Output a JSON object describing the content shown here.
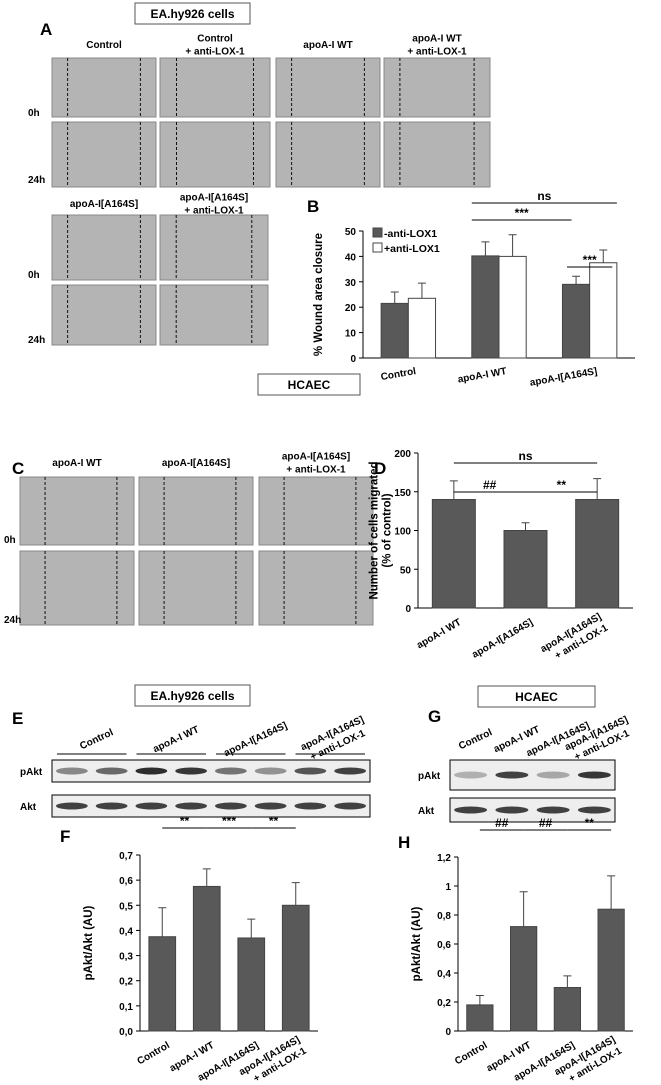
{
  "figure": {
    "panels": [
      "A",
      "B",
      "C",
      "D",
      "E",
      "F",
      "G",
      "H"
    ],
    "headers": [
      "EA.hy926 cells",
      "HCAEC",
      "EA.hy926 cells",
      "HCAEC"
    ]
  },
  "panel_a": {
    "top_labels": [
      "Control",
      "Control\n+ anti-LOX-1",
      "apoA-I WT",
      "apoA-I WT\n+ anti-LOX-1"
    ],
    "bottom_labels": [
      "apoA-I[A164S]",
      "apoA-I[A164S]\n+ anti-LOX-1"
    ],
    "times": [
      "0h",
      "24h"
    ]
  },
  "panel_c": {
    "labels": [
      "apoA-I WT",
      "apoA-I[A164S]",
      "apoA-I[A164S]\n+ anti-LOX-1"
    ],
    "times": [
      "0h",
      "24h"
    ]
  },
  "panel_e": {
    "lanes": [
      "Control",
      "apoA-I WT",
      "apoA-I[A164S]",
      "apoA-I[A164S]\n+ anti-LOX-1"
    ],
    "rows": [
      "pAkt",
      "Akt"
    ]
  },
  "panel_g": {
    "lanes": [
      "Control",
      "apoA-I WT",
      "apoA-I[A164S]",
      "apoA-I[A164S]\n+ anti-LOX-1"
    ],
    "rows": [
      "pAkt",
      "Akt"
    ]
  },
  "chart_data": [
    {
      "type": "bar",
      "y_label": "% Wound area closure",
      "categories": [
        "Control",
        "apoA-I WT",
        "apoA-I[A164S]"
      ],
      "series": [
        {
          "name": "-anti-LOX1",
          "color": "#595959",
          "values": [
            21.5,
            40.2,
            29
          ],
          "errors": [
            4.5,
            5.5,
            3.2
          ]
        },
        {
          "name": "+anti-LOX1",
          "color": "#ffffff",
          "values": [
            23.5,
            40,
            37.5
          ],
          "errors": [
            6,
            8.5,
            5
          ]
        }
      ],
      "ylim": [
        0,
        50
      ],
      "yticks": [
        0,
        10,
        20,
        30,
        40,
        50
      ],
      "annotations": [
        "ns",
        "***",
        "***"
      ]
    },
    {
      "type": "bar",
      "y_label": "Number of cells migrated\n(% of control)",
      "categories": [
        "apoA-I WT",
        "apoA-I[A164S]",
        "apoA-I[A164S]\n+ anti-LOX-1"
      ],
      "color": "#595959",
      "values": [
        140,
        100,
        140
      ],
      "errors": [
        24,
        10,
        27
      ],
      "ylim": [
        0,
        200
      ],
      "yticks": [
        0,
        50,
        100,
        150,
        200
      ],
      "annotations": [
        "ns",
        "##",
        "**"
      ]
    },
    {
      "type": "bar",
      "y_label": "pAkt/Akt (AU)",
      "categories": [
        "Control",
        "apoA-I WT",
        "apoA-I[A164S]",
        "apoA-I[A164S]\n+ anti-LOX-1"
      ],
      "color": "#595959",
      "values": [
        0.375,
        0.575,
        0.37,
        0.5
      ],
      "errors": [
        0.115,
        0.07,
        0.075,
        0.09
      ],
      "ylim": [
        0,
        0.7
      ],
      "yticks": [
        {
          "value": 0,
          "label": "0,0"
        },
        {
          "value": 0.1,
          "label": "0,1"
        },
        {
          "value": 0.2,
          "label": "0,2"
        },
        {
          "value": 0.3,
          "label": "0,3"
        },
        {
          "value": 0.4,
          "label": "0,4"
        },
        {
          "value": 0.5,
          "label": "0,5"
        },
        {
          "value": 0.6,
          "label": "0,6"
        },
        {
          "value": 0.7,
          "label": "0,7"
        }
      ],
      "annotations": [
        "**",
        "***",
        "**"
      ]
    },
    {
      "type": "bar",
      "y_label": "pAkt/Akt  (AU)",
      "categories": [
        "Control",
        "apoA-I WT",
        "apoA-I[A164S]",
        "apoA-I[A164S]\n+ anti-LOX-1"
      ],
      "color": "#595959",
      "values": [
        0.18,
        0.72,
        0.3,
        0.84
      ],
      "errors": [
        0.065,
        0.24,
        0.08,
        0.23
      ],
      "ylim": [
        0,
        1.2
      ],
      "yticks": [
        0,
        {
          "value": 0.2,
          "label": "0,2"
        },
        {
          "value": 0.4,
          "label": "0,4"
        },
        {
          "value": 0.6,
          "label": "0,6"
        },
        {
          "value": 0.8,
          "label": "0,8"
        },
        1,
        {
          "value": 1.2,
          "label": "1,2"
        }
      ],
      "annotations": [
        "##",
        "##",
        "**"
      ]
    }
  ]
}
